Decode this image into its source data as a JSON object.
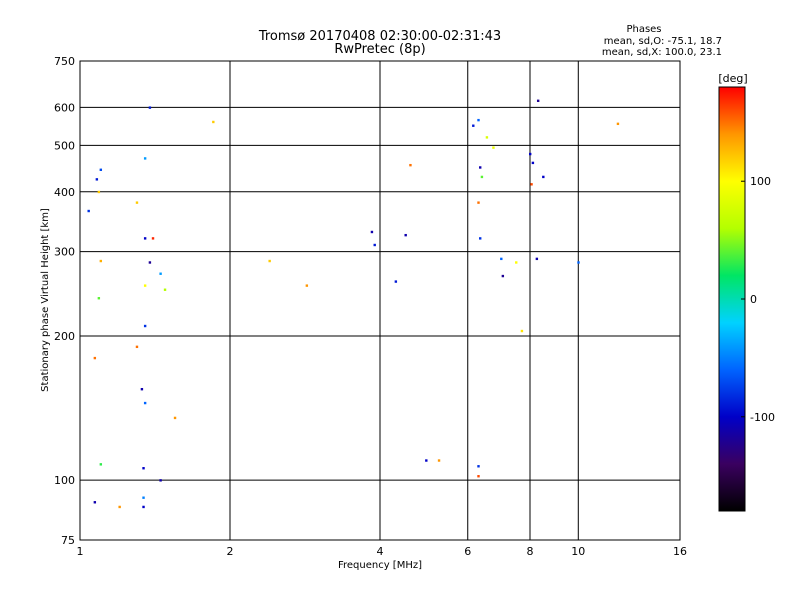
{
  "chart_data": {
    "type": "scatter",
    "title": "Tromsø 20170408 02:30:00-02:31:43",
    "subtitle": "RwPretec (8p)",
    "xlabel": "Frequency [MHz]",
    "ylabel": "Stationary phase Virtual Height [km]",
    "x_scale": "log",
    "y_scale": "log",
    "xlim": [
      1,
      16
    ],
    "ylim": [
      75,
      750
    ],
    "x_ticks": [
      1,
      2,
      4,
      6,
      8,
      10,
      16
    ],
    "y_ticks": [
      75,
      100,
      200,
      300,
      400,
      500,
      600,
      750
    ],
    "grid": true,
    "phase_stats": {
      "heading": "Phases",
      "line_o": "mean, sd,O: -75.1, 18.7",
      "line_x": "mean, sd,X: 100.0, 23.1"
    },
    "colorbar": {
      "label": "[deg]",
      "ticks": [
        100,
        0,
        -100
      ],
      "range": [
        -180,
        180
      ],
      "colors": [
        "#000000",
        "#3a0060",
        "#0000c8",
        "#0064ff",
        "#00d2ff",
        "#00e664",
        "#b4ff00",
        "#ffff00",
        "#ff9600",
        "#ff0000"
      ]
    },
    "series": [
      {
        "points": [
          [
            1.04,
            365,
            -80
          ],
          [
            1.08,
            425,
            -90
          ],
          [
            1.1,
            445,
            -70
          ],
          [
            1.07,
            180,
            150
          ],
          [
            1.09,
            240,
            40
          ],
          [
            1.1,
            287,
            130
          ],
          [
            1.09,
            400,
            120
          ],
          [
            1.07,
            90,
            -110
          ],
          [
            1.1,
            108,
            30
          ],
          [
            1.2,
            88,
            140
          ],
          [
            1.38,
            600,
            -90
          ],
          [
            1.35,
            470,
            -40
          ],
          [
            1.3,
            380,
            120
          ],
          [
            1.35,
            320,
            -100
          ],
          [
            1.4,
            320,
            170
          ],
          [
            1.38,
            285,
            -120
          ],
          [
            1.35,
            255,
            100
          ],
          [
            1.45,
            270,
            -40
          ],
          [
            1.48,
            250,
            60
          ],
          [
            1.35,
            210,
            -80
          ],
          [
            1.3,
            190,
            150
          ],
          [
            1.33,
            155,
            -110
          ],
          [
            1.35,
            145,
            -60
          ],
          [
            1.55,
            135,
            140
          ],
          [
            1.34,
            106,
            -100
          ],
          [
            1.45,
            100,
            -110
          ],
          [
            1.34,
            88,
            -100
          ],
          [
            1.34,
            92,
            -50
          ],
          [
            1.85,
            560,
            120
          ],
          [
            2.4,
            287,
            120
          ],
          [
            2.85,
            255,
            140
          ],
          [
            3.85,
            330,
            -110
          ],
          [
            3.9,
            310,
            -90
          ],
          [
            4.3,
            260,
            -90
          ],
          [
            4.5,
            325,
            -110
          ],
          [
            4.6,
            455,
            150
          ],
          [
            6.15,
            550,
            -90
          ],
          [
            6.3,
            565,
            -60
          ],
          [
            6.55,
            520,
            80
          ],
          [
            6.75,
            495,
            90
          ],
          [
            6.35,
            450,
            -110
          ],
          [
            6.4,
            430,
            40
          ],
          [
            6.3,
            380,
            150
          ],
          [
            6.35,
            320,
            -80
          ],
          [
            7.0,
            290,
            -60
          ],
          [
            7.05,
            267,
            -120
          ],
          [
            7.5,
            285,
            100
          ],
          [
            7.7,
            205,
            110
          ],
          [
            8.0,
            480,
            -100
          ],
          [
            8.1,
            460,
            -100
          ],
          [
            8.05,
            415,
            160
          ],
          [
            8.3,
            620,
            -120
          ],
          [
            8.5,
            430,
            -100
          ],
          [
            10,
            285,
            -60
          ],
          [
            8.25,
            290,
            -110
          ],
          [
            12.0,
            555,
            140
          ],
          [
            6.3,
            102,
            160
          ],
          [
            6.3,
            107,
            -80
          ],
          [
            4.95,
            110,
            -100
          ],
          [
            5.25,
            110,
            140
          ]
        ]
      }
    ]
  }
}
